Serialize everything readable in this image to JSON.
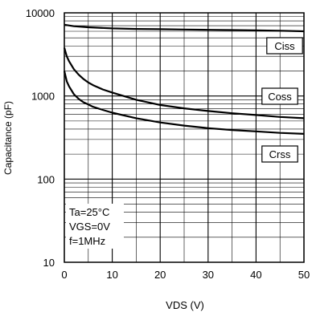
{
  "chart_data": {
    "type": "line",
    "title": "",
    "xlabel": "VDS (V)",
    "ylabel": "Capacitance (pF)",
    "xlim": [
      0,
      50
    ],
    "ylim": [
      10,
      10000
    ],
    "yscale": "log",
    "grid": true,
    "x_ticks": [
      0,
      10,
      20,
      30,
      40,
      50
    ],
    "x_tick_labels": [
      "0",
      "10",
      "20",
      "30",
      "40",
      "50"
    ],
    "y_ticks": [
      10,
      100,
      1000,
      10000
    ],
    "y_tick_labels": [
      "10",
      "100",
      "1000",
      "10000"
    ],
    "conditions": [
      "Ta=25°C",
      "VGS=0V",
      "f=1MHz"
    ],
    "series": [
      {
        "name": "Ciss",
        "x": [
          0,
          2,
          5,
          10,
          15,
          20,
          25,
          30,
          35,
          40,
          45,
          50
        ],
        "y": [
          7200,
          6900,
          6700,
          6500,
          6400,
          6350,
          6300,
          6250,
          6200,
          6150,
          6100,
          6000
        ]
      },
      {
        "name": "Coss",
        "x": [
          0,
          0.5,
          1,
          2,
          3,
          4,
          5,
          6,
          8,
          10,
          15,
          20,
          25,
          30,
          35,
          40,
          45,
          50
        ],
        "y": [
          3800,
          3000,
          2600,
          2100,
          1800,
          1600,
          1450,
          1350,
          1200,
          1100,
          900,
          780,
          710,
          660,
          620,
          590,
          560,
          540
        ]
      },
      {
        "name": "Crss",
        "x": [
          0,
          0.5,
          1,
          2,
          3,
          4,
          5,
          6,
          8,
          10,
          15,
          20,
          25,
          30,
          35,
          40,
          45,
          50
        ],
        "y": [
          2000,
          1500,
          1300,
          1050,
          920,
          840,
          790,
          740,
          680,
          630,
          540,
          480,
          440,
          410,
          390,
          375,
          360,
          350
        ]
      }
    ]
  }
}
